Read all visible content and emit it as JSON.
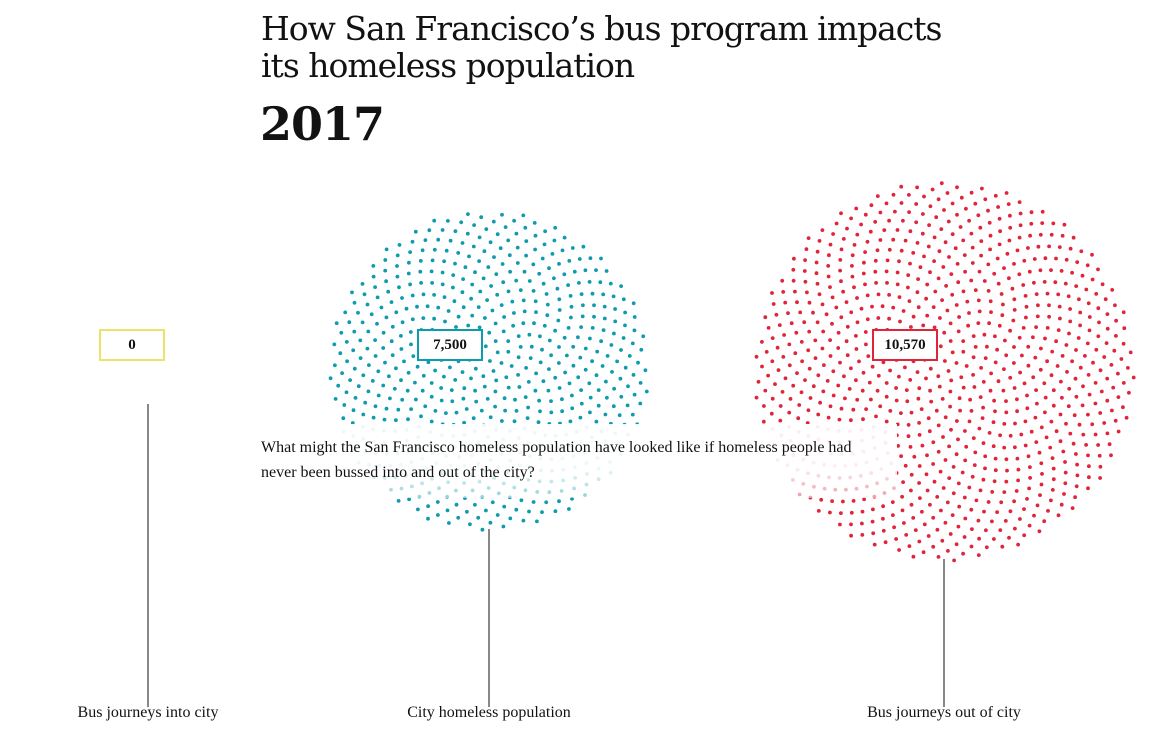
{
  "header": {
    "title": "How San Francisco’s bus program impacts its homeless population",
    "year": "2017"
  },
  "question": "What might the San Francisco homeless population have looked like if homeless people had never been bussed into and out of the city?",
  "chart_data": {
    "type": "dot-cluster",
    "title": "How San Francisco’s bus program impacts its homeless population",
    "subtitle": "2017",
    "categories": [
      "Bus journeys into city",
      "City homeless population",
      "Bus journeys out of city"
    ],
    "values": [
      0,
      7500,
      10570
    ],
    "value_labels": [
      "0",
      "7,500",
      "10,570"
    ],
    "colors": [
      "#ece36a",
      "#0f9bae",
      "#e0253a"
    ]
  }
}
